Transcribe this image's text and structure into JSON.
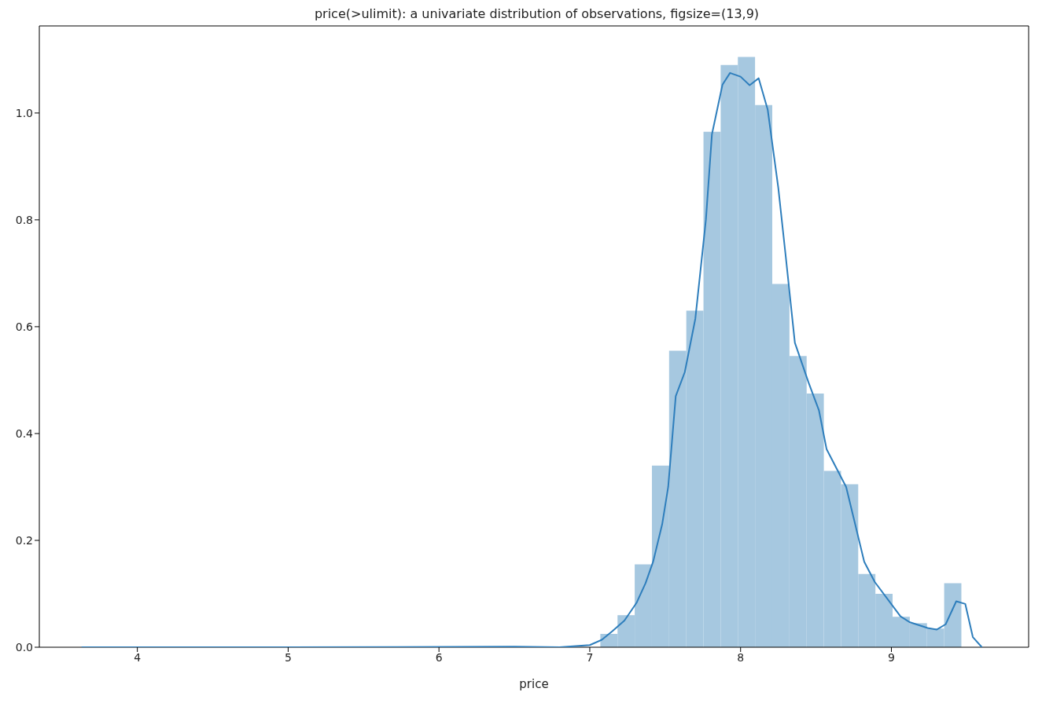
{
  "chart_data": {
    "type": "histogram",
    "title": "price(>ulimit): a univariate distribution of observations, figsize=(13,9)",
    "xlabel": "price",
    "bins": [
      3.65,
      3.764,
      3.878,
      3.992,
      4.106,
      4.22,
      4.334,
      4.448,
      4.562,
      4.676,
      4.79,
      4.904,
      5.018,
      5.132,
      5.246,
      5.36,
      5.474,
      5.588,
      5.702,
      5.816,
      5.93,
      6.044,
      6.158,
      6.272,
      6.386,
      6.5,
      6.614,
      6.728,
      6.842,
      6.956,
      7.07,
      7.184,
      7.298,
      7.412,
      7.526,
      7.64,
      7.754,
      7.868,
      7.982,
      8.096,
      8.21,
      8.324,
      8.438,
      8.552,
      8.666,
      8.78,
      8.894,
      9.008,
      9.122,
      9.236,
      9.35,
      9.464
    ],
    "values": [
      0,
      0,
      0,
      0,
      0,
      0,
      0,
      0,
      0,
      0,
      0,
      0,
      0,
      0,
      0,
      0,
      0,
      0,
      0,
      0,
      0,
      0,
      0,
      0,
      0,
      0,
      0,
      0,
      0,
      0,
      0.025,
      0.06,
      0.155,
      0.34,
      0.555,
      0.63,
      0.965,
      1.09,
      1.105,
      1.015,
      0.68,
      0.545,
      0.475,
      0.33,
      0.305,
      0.137,
      0.1,
      0.057,
      0.045,
      0.035,
      0.12
    ],
    "color": "#a6c8e0",
    "series": [
      {
        "type": "line",
        "color": "#2e7ebc",
        "x": [
          3.63,
          5.0,
          6.5,
          6.8,
          7.0,
          7.08,
          7.15,
          7.23,
          7.31,
          7.37,
          7.42,
          7.48,
          7.52,
          7.57,
          7.63,
          7.7,
          7.77,
          7.81,
          7.88,
          7.93,
          8.0,
          8.06,
          8.12,
          8.18,
          8.25,
          8.3,
          8.36,
          8.45,
          8.52,
          8.57,
          8.7,
          8.82,
          8.89,
          9.06,
          9.12,
          9.24,
          9.3,
          9.36,
          9.43,
          9.49,
          9.54,
          9.6
        ],
        "values": [
          0,
          0,
          0.001,
          0,
          0.004,
          0.014,
          0.03,
          0.05,
          0.083,
          0.12,
          0.16,
          0.23,
          0.3,
          0.47,
          0.515,
          0.615,
          0.8,
          0.96,
          1.053,
          1.075,
          1.068,
          1.052,
          1.065,
          1.006,
          0.86,
          0.73,
          0.57,
          0.496,
          0.443,
          0.371,
          0.3,
          0.16,
          0.122,
          0.058,
          0.047,
          0.036,
          0.033,
          0.043,
          0.086,
          0.081,
          0.019,
          0
        ]
      }
    ],
    "xlim": [
      3.35,
      9.91
    ],
    "xticks": [
      4,
      5,
      6,
      7,
      8,
      9
    ],
    "ylim": [
      0,
      1.163
    ],
    "yticks": [
      {
        "value": 0,
        "label": "0.0"
      },
      {
        "value": 0.2,
        "label": "0.2"
      },
      {
        "value": 0.4,
        "label": "0.4"
      },
      {
        "value": 0.6,
        "label": "0.6"
      },
      {
        "value": 0.8,
        "label": "0.8"
      },
      {
        "value": 1.0,
        "label": "1.0"
      }
    ],
    "grid": false,
    "marker": "none",
    "line_style": "solid"
  }
}
